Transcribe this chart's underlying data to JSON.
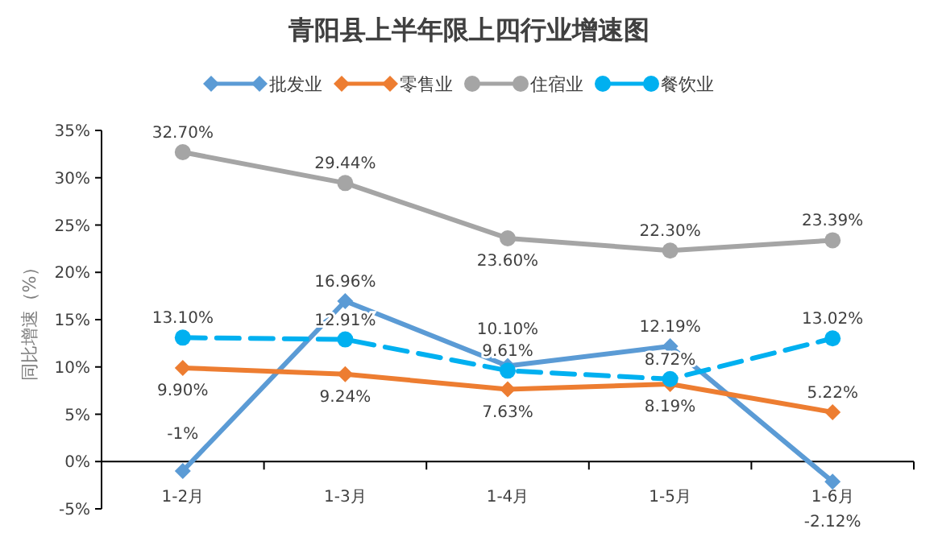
{
  "chart_data": {
    "type": "line",
    "title": "青阳县上半年限上四行业增速图",
    "ylabel": "同比增速（%）",
    "categories": [
      "1-2月",
      "1-3月",
      "1-4月",
      "1-5月",
      "1-6月"
    ],
    "ylim": [
      -5,
      35
    ],
    "yticks": [
      {
        "value": -5,
        "label": "-5%"
      },
      {
        "value": 0,
        "label": "0%"
      },
      {
        "value": 5,
        "label": "5%"
      },
      {
        "value": 10,
        "label": "10%"
      },
      {
        "value": 15,
        "label": "15%"
      },
      {
        "value": 20,
        "label": "20%"
      },
      {
        "value": 25,
        "label": "25%"
      },
      {
        "value": 30,
        "label": "30%"
      },
      {
        "value": 35,
        "label": "35%"
      }
    ],
    "series": [
      {
        "name": "批发业",
        "color": "#5b9bd5",
        "marker": "diamond",
        "line_style": "solid",
        "values": [
          -1,
          16.96,
          10.1,
          12.19,
          -2.12
        ],
        "value_labels": [
          "-1%",
          "16.96%",
          "10.10%",
          "12.19%",
          "-2.12%"
        ]
      },
      {
        "name": "零售业",
        "color": "#ed7d31",
        "marker": "diamond",
        "line_style": "solid",
        "values": [
          9.9,
          9.24,
          7.63,
          8.19,
          5.22
        ],
        "value_labels": [
          "9.90%",
          "9.24%",
          "7.63%",
          "8.19%",
          "5.22%"
        ]
      },
      {
        "name": "住宿业",
        "color": "#a5a5a5",
        "marker": "circle",
        "line_style": "solid",
        "values": [
          32.7,
          29.44,
          23.6,
          22.3,
          23.39
        ],
        "value_labels": [
          "32.70%",
          "29.44%",
          "23.60%",
          "22.30%",
          "23.39%"
        ]
      },
      {
        "name": "餐饮业",
        "color": "#00b0f0",
        "marker": "circle",
        "line_style": "dashed",
        "values": [
          13.1,
          12.91,
          9.61,
          8.72,
          13.02
        ],
        "value_labels": [
          "13.10%",
          "12.91%",
          "9.61%",
          "8.72%",
          "13.02%"
        ]
      }
    ],
    "legend": "top",
    "grid": false
  }
}
